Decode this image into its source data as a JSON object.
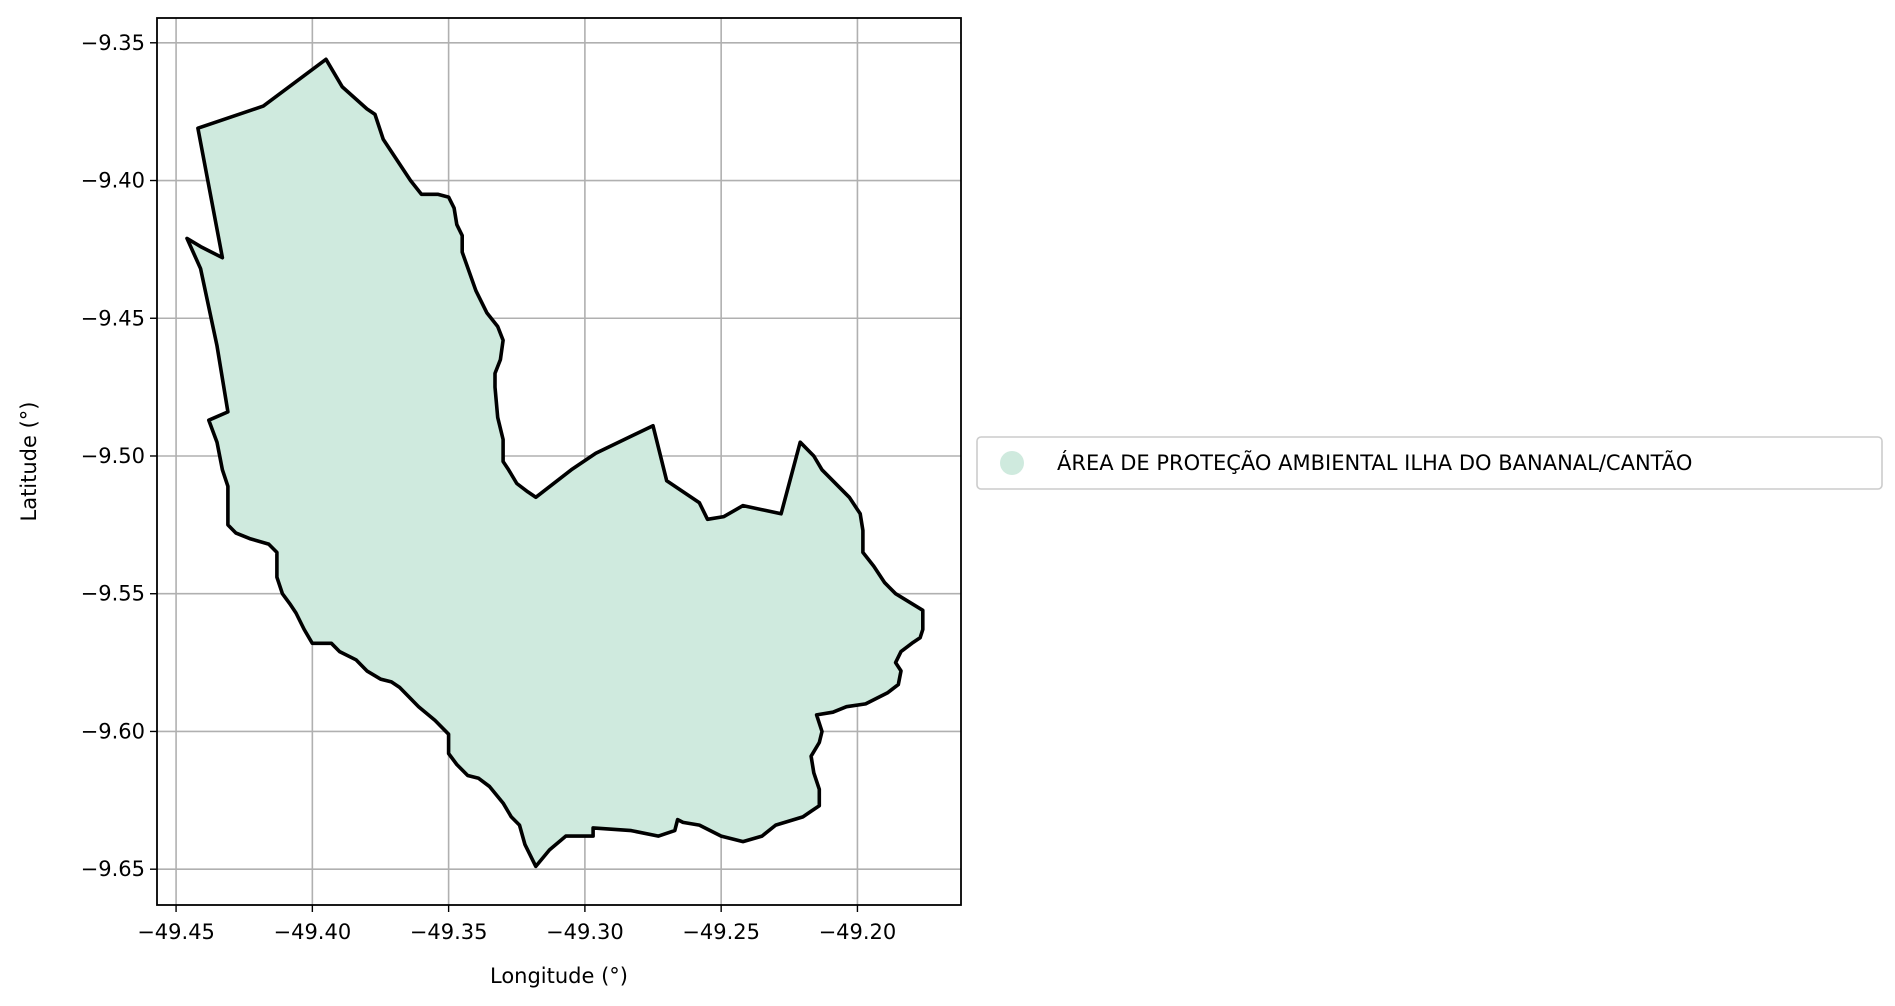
{
  "chart_data": {
    "type": "map",
    "xlabel": "Longitude (°)",
    "ylabel": "Latitude (°)",
    "xlim": [
      -49.457,
      -49.162
    ],
    "ylim": [
      -9.663,
      -9.341
    ],
    "xticks": [
      -49.45,
      -49.4,
      -49.35,
      -49.3,
      -49.25,
      -49.2
    ],
    "xtick_labels": [
      "−49.45",
      "−49.40",
      "−49.35",
      "−49.30",
      "−49.25",
      "−49.20"
    ],
    "yticks": [
      -9.35,
      -9.4,
      -9.45,
      -9.5,
      -9.55,
      -9.6,
      -9.65
    ],
    "ytick_labels": [
      "−9.35",
      "−9.40",
      "−9.45",
      "−9.50",
      "−9.55",
      "−9.60",
      "−9.65"
    ],
    "grid": true,
    "legend_position": "outside-right",
    "series": [
      {
        "name": "ÁREA DE PROTEÇÃO AMBIENTAL ILHA DO BANANAL/CANTÃO",
        "fill_color": "#cfeade",
        "edge_color": "#000000",
        "polygon": [
          [
            -49.395,
            -9.356
          ],
          [
            -49.389,
            -9.366
          ],
          [
            -49.38,
            -9.374
          ],
          [
            -49.377,
            -9.376
          ],
          [
            -49.374,
            -9.385
          ],
          [
            -49.364,
            -9.4
          ],
          [
            -49.36,
            -9.405
          ],
          [
            -49.354,
            -9.405
          ],
          [
            -49.35,
            -9.406
          ],
          [
            -49.348,
            -9.41
          ],
          [
            -49.347,
            -9.416
          ],
          [
            -49.345,
            -9.42
          ],
          [
            -49.345,
            -9.426
          ],
          [
            -49.34,
            -9.44
          ],
          [
            -49.336,
            -9.448
          ],
          [
            -49.332,
            -9.453
          ],
          [
            -49.33,
            -9.458
          ],
          [
            -49.331,
            -9.465
          ],
          [
            -49.333,
            -9.47
          ],
          [
            -49.333,
            -9.475
          ],
          [
            -49.332,
            -9.486
          ],
          [
            -49.33,
            -9.494
          ],
          [
            -49.33,
            -9.502
          ],
          [
            -49.328,
            -9.505
          ],
          [
            -49.325,
            -9.51
          ],
          [
            -49.321,
            -9.513
          ],
          [
            -49.318,
            -9.515
          ],
          [
            -49.305,
            -9.505
          ],
          [
            -49.296,
            -9.499
          ],
          [
            -49.275,
            -9.489
          ],
          [
            -49.27,
            -9.509
          ],
          [
            -49.258,
            -9.517
          ],
          [
            -49.255,
            -9.523
          ],
          [
            -49.249,
            -9.522
          ],
          [
            -49.242,
            -9.518
          ],
          [
            -49.228,
            -9.521
          ],
          [
            -49.221,
            -9.495
          ],
          [
            -49.216,
            -9.5
          ],
          [
            -49.213,
            -9.505
          ],
          [
            -49.203,
            -9.515
          ],
          [
            -49.199,
            -9.521
          ],
          [
            -49.198,
            -9.527
          ],
          [
            -49.198,
            -9.535
          ],
          [
            -49.194,
            -9.54
          ],
          [
            -49.19,
            -9.546
          ],
          [
            -49.186,
            -9.55
          ],
          [
            -49.176,
            -9.556
          ],
          [
            -49.176,
            -9.563
          ],
          [
            -49.177,
            -9.566
          ],
          [
            -49.18,
            -9.568
          ],
          [
            -49.184,
            -9.571
          ],
          [
            -49.186,
            -9.575
          ],
          [
            -49.184,
            -9.578
          ],
          [
            -49.185,
            -9.583
          ],
          [
            -49.189,
            -9.586
          ],
          [
            -49.193,
            -9.588
          ],
          [
            -49.197,
            -9.59
          ],
          [
            -49.204,
            -9.591
          ],
          [
            -49.209,
            -9.593
          ],
          [
            -49.215,
            -9.594
          ],
          [
            -49.213,
            -9.6
          ],
          [
            -49.214,
            -9.604
          ],
          [
            -49.217,
            -9.609
          ],
          [
            -49.216,
            -9.615
          ],
          [
            -49.214,
            -9.621
          ],
          [
            -49.214,
            -9.627
          ],
          [
            -49.217,
            -9.629
          ],
          [
            -49.22,
            -9.631
          ],
          [
            -49.23,
            -9.634
          ],
          [
            -49.235,
            -9.638
          ],
          [
            -49.242,
            -9.64
          ],
          [
            -49.25,
            -9.638
          ],
          [
            -49.258,
            -9.634
          ],
          [
            -49.264,
            -9.633
          ],
          [
            -49.266,
            -9.632
          ],
          [
            -49.267,
            -9.636
          ],
          [
            -49.273,
            -9.638
          ],
          [
            -49.283,
            -9.636
          ],
          [
            -49.297,
            -9.635
          ],
          [
            -49.297,
            -9.638
          ],
          [
            -49.307,
            -9.638
          ],
          [
            -49.313,
            -9.643
          ],
          [
            -49.318,
            -9.649
          ],
          [
            -49.322,
            -9.641
          ],
          [
            -49.324,
            -9.634
          ],
          [
            -49.327,
            -9.631
          ],
          [
            -49.33,
            -9.626
          ],
          [
            -49.335,
            -9.62
          ],
          [
            -49.339,
            -9.617
          ],
          [
            -49.343,
            -9.616
          ],
          [
            -49.347,
            -9.612
          ],
          [
            -49.35,
            -9.608
          ],
          [
            -49.35,
            -9.601
          ],
          [
            -49.355,
            -9.596
          ],
          [
            -49.361,
            -9.591
          ],
          [
            -49.365,
            -9.587
          ],
          [
            -49.368,
            -9.584
          ],
          [
            -49.371,
            -9.582
          ],
          [
            -49.375,
            -9.581
          ],
          [
            -49.38,
            -9.578
          ],
          [
            -49.384,
            -9.574
          ],
          [
            -49.39,
            -9.571
          ],
          [
            -49.393,
            -9.568
          ],
          [
            -49.4,
            -9.568
          ],
          [
            -49.403,
            -9.563
          ],
          [
            -49.406,
            -9.557
          ],
          [
            -49.408,
            -9.554
          ],
          [
            -49.411,
            -9.55
          ],
          [
            -49.413,
            -9.544
          ],
          [
            -49.413,
            -9.535
          ],
          [
            -49.416,
            -9.532
          ],
          [
            -49.423,
            -9.53
          ],
          [
            -49.428,
            -9.528
          ],
          [
            -49.431,
            -9.525
          ],
          [
            -49.431,
            -9.511
          ],
          [
            -49.433,
            -9.505
          ],
          [
            -49.434,
            -9.5
          ],
          [
            -49.435,
            -9.495
          ],
          [
            -49.438,
            -9.487
          ],
          [
            -49.431,
            -9.484
          ],
          [
            -49.435,
            -9.46
          ],
          [
            -49.441,
            -9.432
          ],
          [
            -49.446,
            -9.421
          ],
          [
            -49.441,
            -9.424
          ],
          [
            -49.433,
            -9.428
          ],
          [
            -49.442,
            -9.381
          ],
          [
            -49.418,
            -9.373
          ]
        ]
      }
    ]
  }
}
